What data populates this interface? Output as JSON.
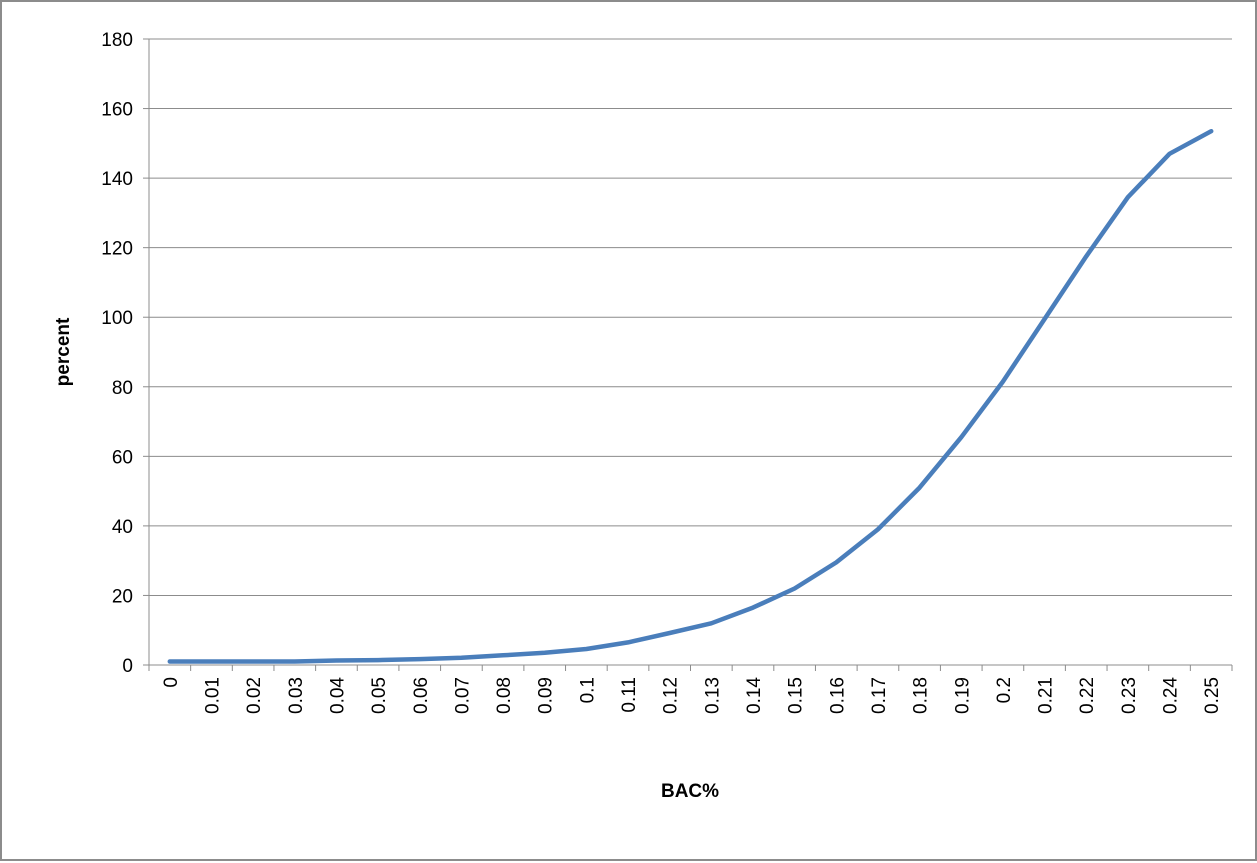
{
  "chart_data": {
    "type": "line",
    "title": "",
    "xlabel": "BAC%",
    "ylabel": "percent",
    "categories": [
      "0",
      "0.01",
      "0.02",
      "0.03",
      "0.04",
      "0.05",
      "0.06",
      "0.07",
      "0.08",
      "0.09",
      "0.1",
      "0.11",
      "0.12",
      "0.13",
      "0.14",
      "0.15",
      "0.16",
      "0.17",
      "0.18",
      "0.19",
      "0.2",
      "0.21",
      "0.22",
      "0.23",
      "0.24",
      "0.25"
    ],
    "y_ticks": [
      "0",
      "20",
      "40",
      "60",
      "80",
      "100",
      "120",
      "140",
      "160",
      "180"
    ],
    "ylim": [
      0,
      180
    ],
    "grid": true,
    "legend": "none",
    "series": [
      {
        "color": "#4a7ebb",
        "values": [
          1,
          1,
          1,
          1,
          1.3,
          1.4,
          1.7,
          2.1,
          2.8,
          3.5,
          4.6,
          6.5,
          9.2,
          12,
          16.5,
          22,
          29.5,
          39,
          51,
          65.5,
          81.5,
          99.5,
          117.5,
          134.5,
          147,
          153.5
        ]
      }
    ]
  }
}
